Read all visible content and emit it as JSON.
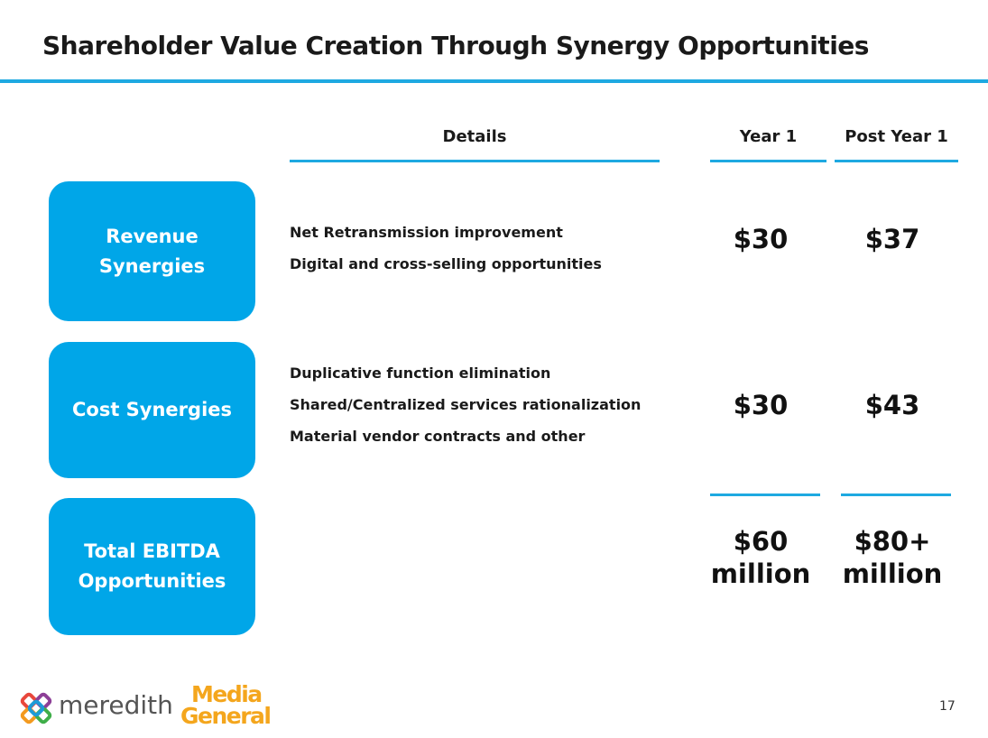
{
  "slide": {
    "title": "Shareholder Value Creation Through Synergy Opportunities",
    "page_number": "17"
  },
  "columns": {
    "details": "Details",
    "year1": "Year 1",
    "post_year1": "Post Year 1"
  },
  "rows": [
    {
      "label_line1": "Revenue",
      "label_line2": "Synergies",
      "details": [
        "Net Retransmission improvement",
        "Digital and cross-selling opportunities"
      ],
      "year1": "$30",
      "post_year1": "$37"
    },
    {
      "label": "Cost Synergies",
      "details": [
        "Duplicative function elimination",
        "Shared/Centralized services rationalization",
        "Material vendor contracts and other"
      ],
      "year1": "$30",
      "post_year1": "$43"
    },
    {
      "label_line1": "Total EBITDA",
      "label_line2": "Opportunities",
      "year1_line1": "$60",
      "year1_line2": "million",
      "post_year1_line1": "$80+",
      "post_year1_line2": "million"
    }
  ],
  "logos": {
    "meredith": "meredith",
    "media_general_line1": "Media",
    "media_general_line2": "General"
  },
  "colors": {
    "accent": "#1ea9e1",
    "pill": "#00a6e8",
    "media_general": "#f4a61d"
  }
}
